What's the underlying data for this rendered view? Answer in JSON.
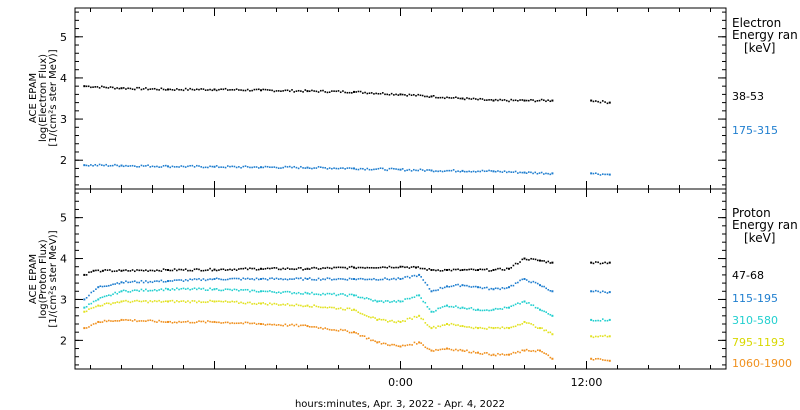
{
  "chart_data": [
    {
      "type": "scatter",
      "panel": "electron",
      "ylabel_lines": [
        "ACE EPAM",
        "log(Electron Flux)",
        "[1/(cm²s ster MeV)]"
      ],
      "ylim": [
        1.3,
        5.7
      ],
      "yticks": [
        2,
        3,
        4,
        5
      ],
      "legend_title": [
        "Electron",
        "Energy ran"
      ],
      "legend_unit": "[keV]",
      "series": [
        {
          "name": "38-53",
          "color": "#000000",
          "segments": [
            {
              "x": [
                -20.4,
                -18,
                -15,
                -12,
                -9,
                -6,
                -3,
                0,
                2,
                4,
                6,
                8,
                9.8
              ],
              "y": [
                3.8,
                3.75,
                3.72,
                3.72,
                3.7,
                3.68,
                3.66,
                3.6,
                3.55,
                3.5,
                3.45,
                3.45,
                3.45
              ]
            },
            {
              "x": [
                12.3,
                13.5
              ],
              "y": [
                3.45,
                3.4
              ]
            }
          ]
        },
        {
          "name": "175-315",
          "color": "#1f7ecf",
          "segments": [
            {
              "x": [
                -20.4,
                -18,
                -15,
                -12,
                -9,
                -6,
                -3,
                0,
                2,
                4,
                6,
                8,
                9.8
              ],
              "y": [
                1.88,
                1.87,
                1.85,
                1.84,
                1.83,
                1.82,
                1.8,
                1.77,
                1.75,
                1.74,
                1.73,
                1.7,
                1.68
              ]
            },
            {
              "x": [
                12.3,
                13.5
              ],
              "y": [
                1.68,
                1.65
              ]
            }
          ]
        }
      ]
    },
    {
      "type": "scatter",
      "panel": "proton",
      "ylabel_lines": [
        "ACE EPAM",
        "log(Proton Flux)",
        "[1/(cm²s ster MeV)]"
      ],
      "ylim": [
        1.3,
        5.7
      ],
      "yticks": [
        2,
        3,
        4,
        5
      ],
      "legend_title": [
        "Proton",
        "Energy ran"
      ],
      "legend_unit": "[keV]",
      "series": [
        {
          "name": "47-68",
          "color": "#000000",
          "segments": [
            {
              "x": [
                -20.4,
                -19.8,
                -19.2,
                -18,
                -15,
                -12,
                -9,
                -6,
                -3,
                0,
                1,
                2,
                3,
                4,
                5,
                6,
                7,
                8,
                9,
                9.8
              ],
              "y": [
                3.6,
                3.7,
                3.7,
                3.7,
                3.72,
                3.73,
                3.75,
                3.75,
                3.78,
                3.8,
                3.78,
                3.72,
                3.72,
                3.72,
                3.72,
                3.72,
                3.75,
                4.0,
                3.95,
                3.9
              ]
            },
            {
              "x": [
                12.3,
                13.5
              ],
              "y": [
                3.9,
                3.9
              ]
            }
          ]
        },
        {
          "name": "115-195",
          "color": "#1f7ecf",
          "segments": [
            {
              "x": [
                -20.4,
                -19.5,
                -18,
                -15,
                -12,
                -9,
                -6,
                -3,
                0,
                1.2,
                2,
                3,
                4,
                5,
                6,
                7,
                8,
                9,
                9.8
              ],
              "y": [
                3.0,
                3.3,
                3.42,
                3.45,
                3.5,
                3.5,
                3.5,
                3.5,
                3.5,
                3.6,
                3.2,
                3.32,
                3.35,
                3.3,
                3.25,
                3.3,
                3.5,
                3.35,
                3.2
              ]
            },
            {
              "x": [
                12.3,
                13.5
              ],
              "y": [
                3.2,
                3.18
              ]
            }
          ]
        },
        {
          "name": "310-580",
          "color": "#22cfcf",
          "segments": [
            {
              "x": [
                -20.4,
                -19.5,
                -18,
                -15,
                -12,
                -9,
                -6,
                -3,
                -1.5,
                0,
                1.2,
                2,
                3,
                4,
                5,
                6,
                7,
                8,
                9,
                9.8
              ],
              "y": [
                2.8,
                3.0,
                3.2,
                3.25,
                3.25,
                3.2,
                3.15,
                3.1,
                2.95,
                2.95,
                3.1,
                2.7,
                2.85,
                2.8,
                2.75,
                2.75,
                2.8,
                2.95,
                2.75,
                2.6
              ]
            },
            {
              "x": [
                12.3,
                13.5
              ],
              "y": [
                2.5,
                2.5
              ]
            }
          ]
        },
        {
          "name": "795-1193",
          "color": "#e2e222",
          "segments": [
            {
              "x": [
                -20.4,
                -19.5,
                -18,
                -15,
                -12,
                -9,
                -6,
                -3,
                -1.5,
                0,
                1.2,
                2,
                3,
                4,
                5,
                6,
                7,
                8,
                9,
                9.8
              ],
              "y": [
                2.7,
                2.85,
                2.95,
                2.95,
                2.95,
                2.9,
                2.85,
                2.75,
                2.5,
                2.45,
                2.6,
                2.3,
                2.4,
                2.35,
                2.3,
                2.3,
                2.3,
                2.45,
                2.3,
                2.15
              ]
            },
            {
              "x": [
                12.3,
                13.5
              ],
              "y": [
                2.1,
                2.1
              ]
            }
          ]
        },
        {
          "name": "1060-1900",
          "color": "#f0901e",
          "segments": [
            {
              "x": [
                -20.4,
                -19.5,
                -18,
                -15,
                -12,
                -9,
                -6,
                -3,
                -1.5,
                0,
                1.2,
                2,
                3,
                4,
                5,
                6,
                7,
                8,
                9,
                9.8
              ],
              "y": [
                2.3,
                2.45,
                2.5,
                2.45,
                2.45,
                2.4,
                2.35,
                2.2,
                1.95,
                1.85,
                1.95,
                1.75,
                1.8,
                1.75,
                1.7,
                1.65,
                1.65,
                1.75,
                1.75,
                1.55
              ]
            },
            {
              "x": [
                12.3,
                13.5
              ],
              "y": [
                1.55,
                1.5
              ]
            }
          ]
        }
      ]
    }
  ],
  "x_axis": {
    "xlim": [
      -21,
      21
    ],
    "tick_labels": [
      {
        "value": 0,
        "label": "0:00"
      },
      {
        "value": 12,
        "label": "12:00"
      }
    ],
    "minor_step": 2,
    "xlabel": "hours:minutes, Apr.  3, 2022 - Apr.  4, 2022"
  }
}
